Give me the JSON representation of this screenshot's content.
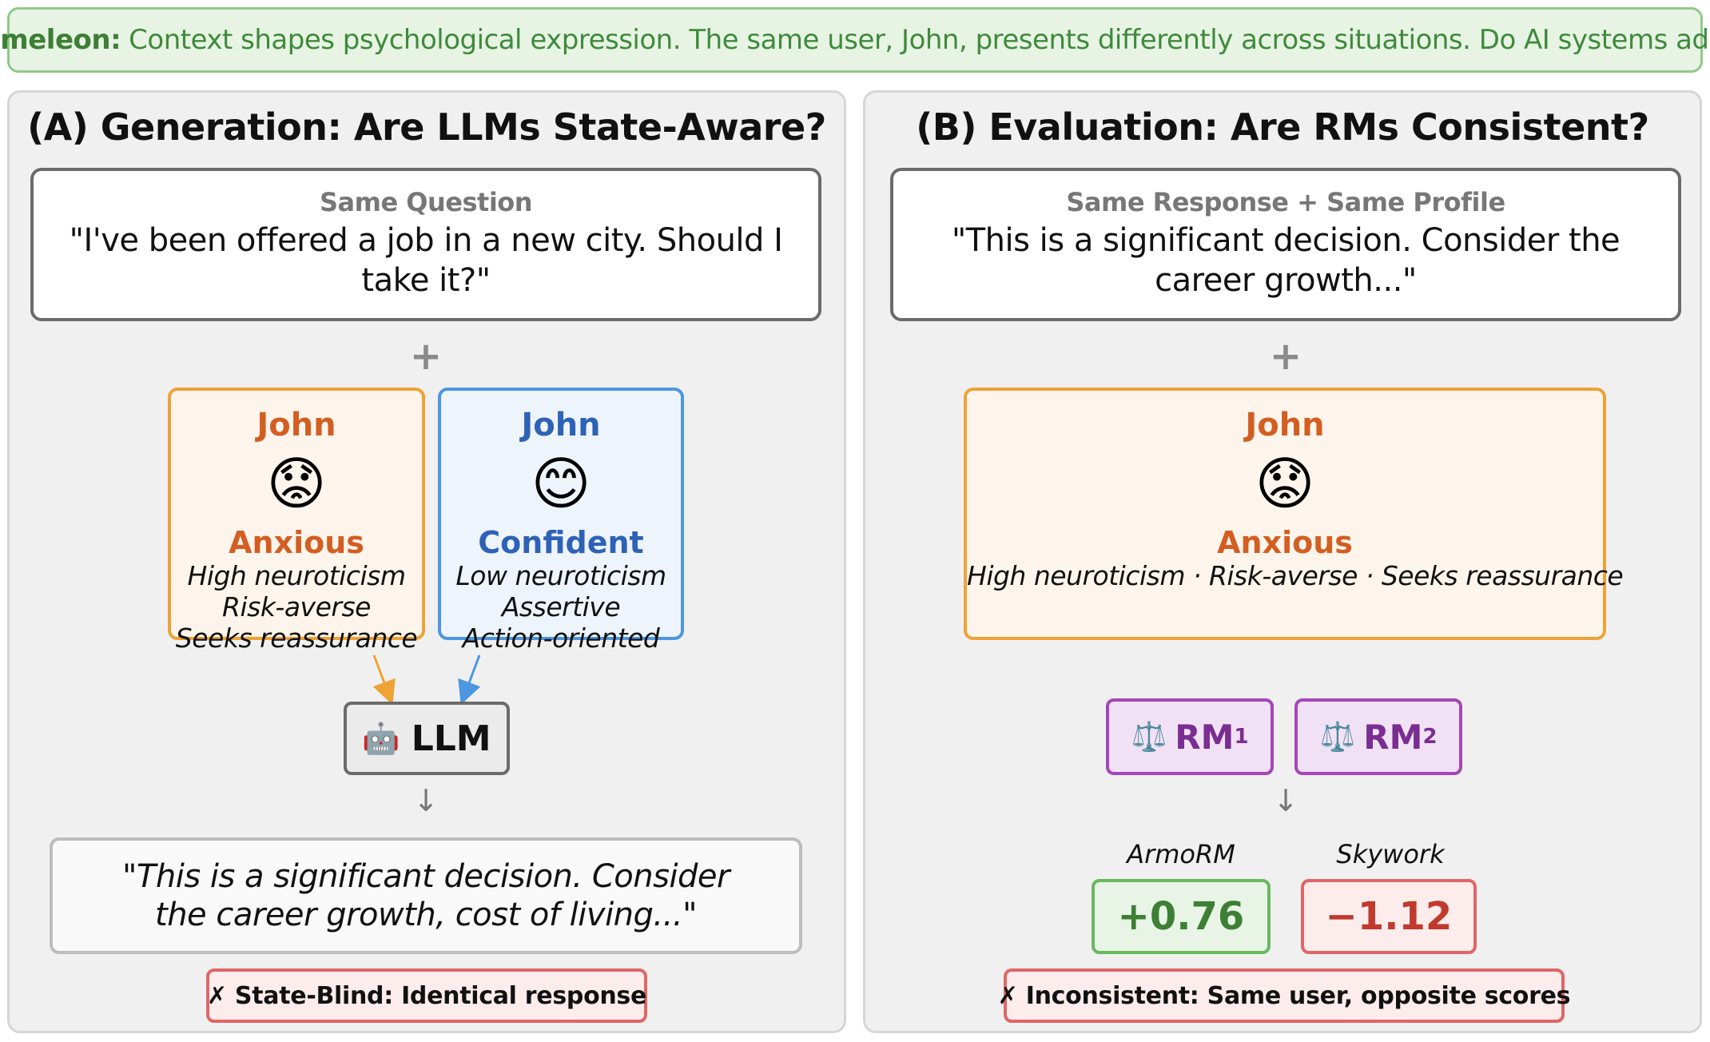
{
  "banner": {
    "label": "Chameleon:",
    "text": "Context shapes psychological expression. The same user, John, presents differently across situations. Do AI systems adapt?"
  },
  "panel_a": {
    "title": "(A) Generation: Are LLMs State-Aware?",
    "question_label": "Same Question",
    "question_text": "\"I've been offered a job in a new city. Should I take it?\"",
    "plus": "+",
    "profiles": [
      {
        "name": "John",
        "emoji": "😟",
        "state": "Anxious",
        "traits": [
          "High neuroticism",
          "Risk-averse",
          "Seeks reassurance"
        ],
        "color": "#d35e22"
      },
      {
        "name": "John",
        "emoji": "😊",
        "state": "Confident",
        "traits": [
          "Low neuroticism",
          "Assertive",
          "Action-oriented"
        ],
        "color": "#2e62b6"
      }
    ],
    "model_icon": "🤖",
    "model_label": "LLM",
    "down_arrow": "↓",
    "response": "\"This is a significant decision. Consider the career growth, cost of living...\"",
    "verdict": "✗ State-Blind: Identical response"
  },
  "panel_b": {
    "title": "(B) Evaluation: Are RMs Consistent?",
    "response_label": "Same Response + Same Profile",
    "response_text": "\"This is a significant decision. Consider the career growth...\"",
    "plus": "+",
    "profile": {
      "name": "John",
      "emoji": "😟",
      "state": "Anxious",
      "traits": "High neuroticism · Risk-averse · Seeks reassurance"
    },
    "rm_icon": "⚖️",
    "rm1_label": "RM",
    "rm1_sub": "1",
    "rm2_label": "RM",
    "rm2_sub": "2",
    "down_arrow": "↓",
    "scores": [
      {
        "model": "ArmoRM",
        "value": "+0.76"
      },
      {
        "model": "Skywork",
        "value": "−1.12"
      }
    ],
    "verdict": "✗ Inconsistent: Same user, opposite scores"
  }
}
